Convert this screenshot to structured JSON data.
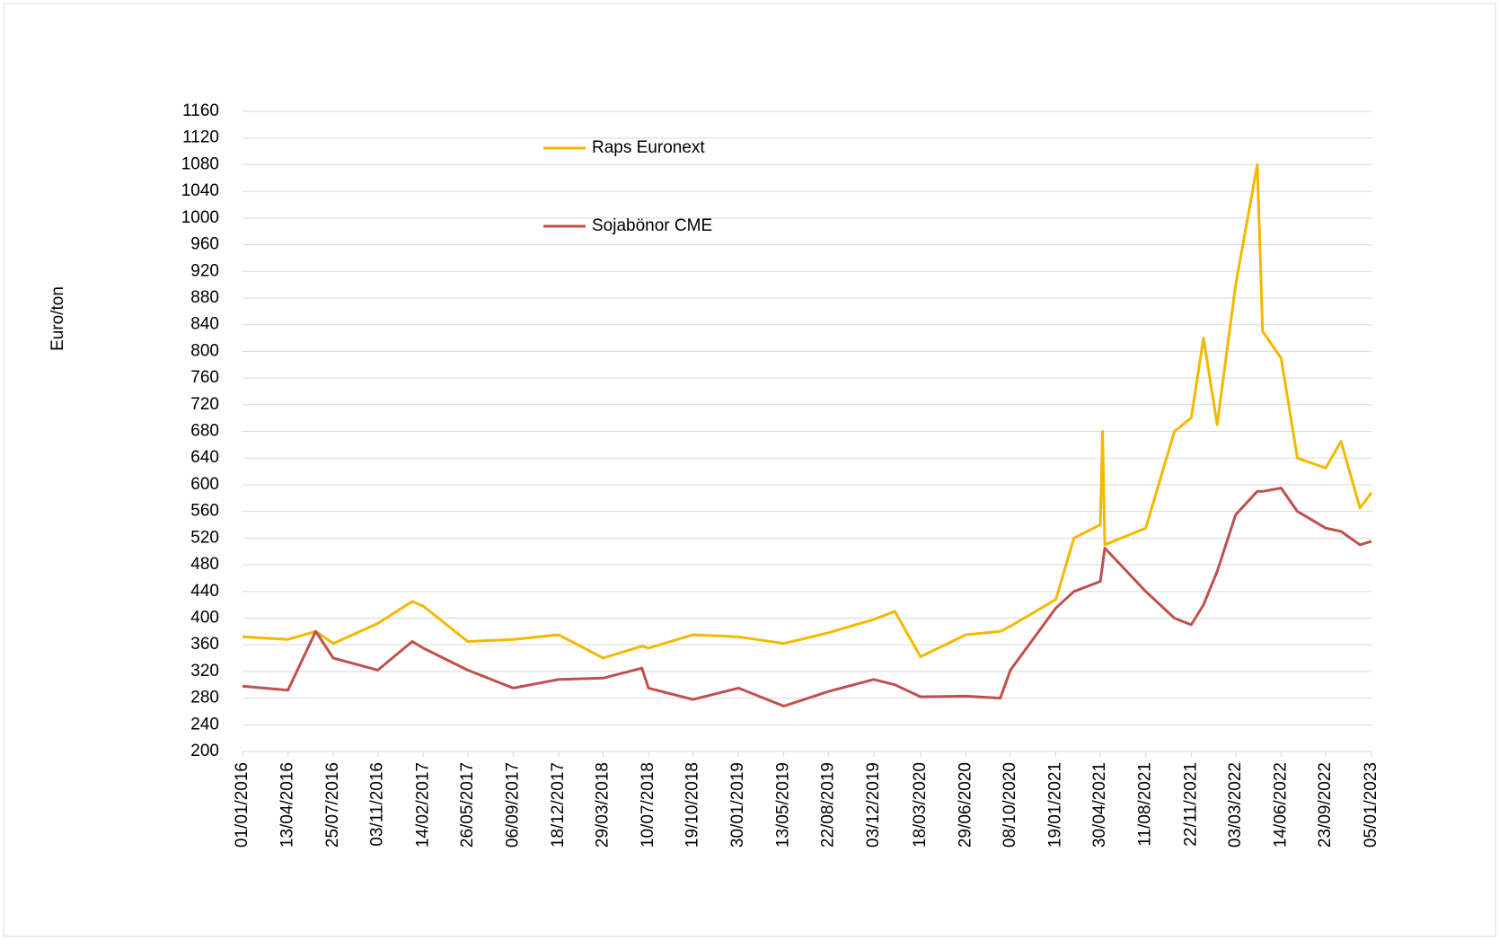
{
  "chart_data": {
    "type": "line",
    "y_label": "Euro/ton",
    "x": [
      "01/01/2016",
      "13/04/2016",
      "15/06/2016",
      "25/07/2016",
      "03/11/2016",
      "20/01/2017",
      "14/02/2017",
      "26/05/2017",
      "06/09/2017",
      "18/12/2017",
      "29/03/2018",
      "25/06/2018",
      "10/07/2018",
      "19/10/2018",
      "30/01/2019",
      "13/05/2019",
      "22/08/2019",
      "03/12/2019",
      "20/01/2020",
      "18/03/2020",
      "29/06/2020",
      "15/09/2020",
      "08/10/2020",
      "19/01/2021",
      "01/03/2021",
      "30/04/2021",
      "05/05/2021",
      "10/05/2021",
      "11/08/2021",
      "15/10/2021",
      "22/11/2021",
      "20/12/2021",
      "20/01/2022",
      "03/03/2022",
      "21/04/2022",
      "03/05/2022",
      "14/06/2022",
      "21/07/2022",
      "23/09/2022",
      "28/10/2022",
      "10/12/2022",
      "05/01/2023"
    ],
    "series": [
      {
        "name": "Raps Euronext",
        "color": "#f5b800",
        "values": [
          372,
          368,
          380,
          362,
          392,
          425,
          418,
          365,
          368,
          375,
          340,
          358,
          355,
          375,
          372,
          362,
          378,
          398,
          410,
          342,
          375,
          380,
          388,
          428,
          520,
          540,
          680,
          510,
          535,
          680,
          700,
          820,
          690,
          900,
          1080,
          830,
          790,
          640,
          625,
          665,
          565,
          588
        ]
      },
      {
        "name": "Sojabönor CME",
        "color": "#c0504d",
        "values": [
          298,
          292,
          380,
          340,
          322,
          365,
          355,
          322,
          295,
          308,
          310,
          325,
          295,
          278,
          295,
          268,
          290,
          308,
          300,
          282,
          283,
          280,
          322,
          415,
          440,
          455,
          480,
          505,
          440,
          400,
          390,
          420,
          470,
          555,
          590,
          590,
          595,
          560,
          535,
          530,
          510,
          515
        ]
      }
    ],
    "xlim": [
      "01/01/2016",
      "05/01/2023"
    ],
    "xticks": [
      "01/01/2016",
      "13/04/2016",
      "25/07/2016",
      "03/11/2016",
      "14/02/2017",
      "26/05/2017",
      "06/09/2017",
      "18/12/2017",
      "29/03/2018",
      "10/07/2018",
      "19/10/2018",
      "30/01/2019",
      "13/05/2019",
      "22/08/2019",
      "03/12/2019",
      "18/03/2020",
      "29/06/2020",
      "08/10/2020",
      "19/01/2021",
      "30/04/2021",
      "11/08/2021",
      "22/11/2021",
      "03/03/2022",
      "14/06/2022",
      "23/09/2022",
      "05/01/2023"
    ],
    "ylim": [
      200,
      1160
    ],
    "yticks": [
      200,
      240,
      280,
      320,
      360,
      400,
      440,
      480,
      520,
      560,
      600,
      640,
      680,
      720,
      760,
      800,
      840,
      880,
      920,
      960,
      1000,
      1040,
      1080,
      1120,
      1160
    ],
    "grid": true
  }
}
